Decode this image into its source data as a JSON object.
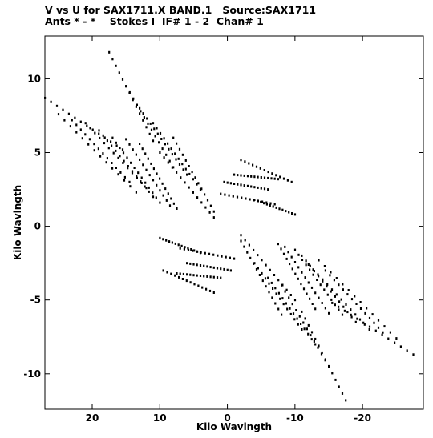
{
  "header": {
    "line1": "V vs U for SAX1711.X BAND.1   Source:SAX1711",
    "line2": "Ants * - *    Stokes I  IF# 1 - 2  Chan# 1"
  },
  "chart_data": {
    "type": "scatter",
    "title": "V vs U for SAX1711.X BAND.1   Source:SAX1711",
    "subtitle": "Ants * - *    Stokes I  IF# 1 - 2  Chan# 1",
    "xlabel": "Kilo Wavlngth",
    "ylabel": "Kilo Wavlngth",
    "xlim": [
      27,
      -29
    ],
    "ylim": [
      -12.4,
      12.9
    ],
    "xticks": [
      20,
      10,
      0,
      -10,
      -20
    ],
    "yticks": [
      10,
      5,
      0,
      -5,
      -10
    ],
    "tracks": [
      {
        "start": [
          27.0,
          8.7
        ],
        "end": [
          15.5,
          5.2
        ]
      },
      {
        "start": [
          25.0,
          7.6
        ],
        "end": [
          13.5,
          2.3
        ]
      },
      {
        "start": [
          23.0,
          7.2
        ],
        "end": [
          14.5,
          3.0
        ]
      },
      {
        "start": [
          21.0,
          7.0
        ],
        "end": [
          12.0,
          2.6
        ]
      },
      {
        "start": [
          19.0,
          6.5
        ],
        "end": [
          11.0,
          2.0
        ]
      },
      {
        "start": [
          17.0,
          6.0
        ],
        "end": [
          10.0,
          1.6
        ]
      },
      {
        "start": [
          15.0,
          5.9
        ],
        "end": [
          8.5,
          1.4
        ]
      },
      {
        "start": [
          13.0,
          5.6
        ],
        "end": [
          7.5,
          1.2
        ]
      },
      {
        "start": [
          17.5,
          11.8
        ],
        "end": [
          11.0,
          5.8
        ]
      },
      {
        "start": [
          15.0,
          9.5
        ],
        "end": [
          8.0,
          4.0
        ]
      },
      {
        "start": [
          13.0,
          8.0
        ],
        "end": [
          6.0,
          3.5
        ]
      },
      {
        "start": [
          11.0,
          7.0
        ],
        "end": [
          4.0,
          2.5
        ]
      },
      {
        "start": [
          8.0,
          6.0
        ],
        "end": [
          2.0,
          1.0
        ]
      },
      {
        "start": [
          10.0,
          5.0
        ],
        "end": [
          2.0,
          0.6
        ]
      },
      {
        "start": [
          -9.5,
          3.0
        ],
        "end": [
          -2.0,
          4.5
        ]
      },
      {
        "start": [
          -7.5,
          3.2
        ],
        "end": [
          -1.0,
          3.5
        ]
      },
      {
        "start": [
          -6.0,
          2.5
        ],
        "end": [
          0.5,
          3.0
        ]
      },
      {
        "start": [
          -7.0,
          1.5
        ],
        "end": [
          1.0,
          2.2
        ]
      },
      {
        "start": [
          -10.0,
          0.8
        ],
        "end": [
          -4.0,
          1.8
        ]
      },
      {
        "start": [
          -27.5,
          -8.7
        ],
        "end": [
          -15.5,
          -5.2
        ]
      },
      {
        "start": [
          -25.0,
          -7.6
        ],
        "end": [
          -13.5,
          -2.3
        ]
      },
      {
        "start": [
          -23.0,
          -7.2
        ],
        "end": [
          -14.5,
          -3.0
        ]
      },
      {
        "start": [
          -21.0,
          -7.0
        ],
        "end": [
          -12.0,
          -2.6
        ]
      },
      {
        "start": [
          -19.0,
          -6.5
        ],
        "end": [
          -11.0,
          -2.0
        ]
      },
      {
        "start": [
          -17.0,
          -6.0
        ],
        "end": [
          -10.0,
          -1.6
        ]
      },
      {
        "start": [
          -15.0,
          -5.9
        ],
        "end": [
          -8.5,
          -1.4
        ]
      },
      {
        "start": [
          -13.0,
          -5.6
        ],
        "end": [
          -7.5,
          -1.2
        ]
      },
      {
        "start": [
          -17.5,
          -11.8
        ],
        "end": [
          -11.0,
          -5.8
        ]
      },
      {
        "start": [
          -15.0,
          -9.5
        ],
        "end": [
          -8.0,
          -4.0
        ]
      },
      {
        "start": [
          -13.0,
          -8.0
        ],
        "end": [
          -6.0,
          -3.5
        ]
      },
      {
        "start": [
          -11.0,
          -7.0
        ],
        "end": [
          -4.0,
          -2.5
        ]
      },
      {
        "start": [
          -8.0,
          -6.0
        ],
        "end": [
          -2.0,
          -1.0
        ]
      },
      {
        "start": [
          -10.0,
          -5.0
        ],
        "end": [
          -2.0,
          -0.6
        ]
      },
      {
        "start": [
          9.5,
          -3.0
        ],
        "end": [
          2.0,
          -4.5
        ]
      },
      {
        "start": [
          7.5,
          -3.2
        ],
        "end": [
          1.0,
          -3.5
        ]
      },
      {
        "start": [
          6.0,
          -2.5
        ],
        "end": [
          -0.5,
          -3.0
        ]
      },
      {
        "start": [
          7.0,
          -1.5
        ],
        "end": [
          -1.0,
          -2.2
        ]
      },
      {
        "start": [
          10.0,
          -0.8
        ],
        "end": [
          4.0,
          -1.8
        ]
      }
    ],
    "grid": false,
    "legend": "none"
  }
}
